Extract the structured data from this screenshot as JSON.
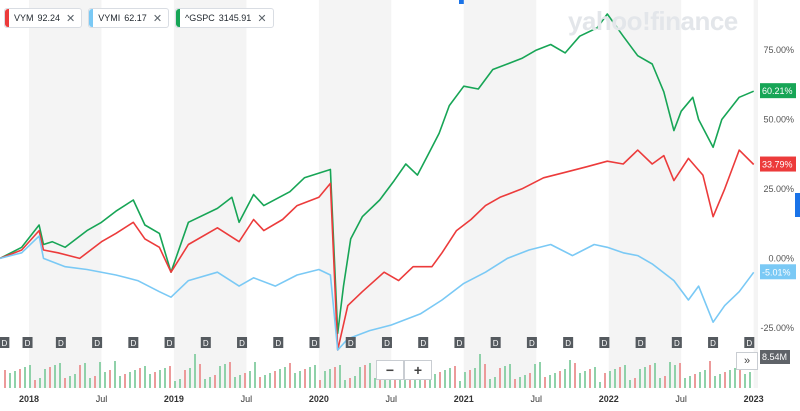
{
  "legend": [
    {
      "symbol": "VYM",
      "value": "92.24",
      "color": "#ec3b3b",
      "close": "✕"
    },
    {
      "symbol": "VYMI",
      "value": "62.17",
      "color": "#7ac9f5",
      "close": "✕"
    },
    {
      "symbol": "^GSPC",
      "value": "3145.91",
      "color": "#17a556",
      "close": "✕"
    }
  ],
  "brand": "yahoo!finance",
  "volume_badge": "8.54M",
  "zoom": {
    "minus": "−",
    "plus": "+"
  },
  "expand_icon": "»",
  "colors": {
    "vym": "#ec3b3b",
    "vymi": "#7ac9f5",
    "gspc": "#17a556",
    "shade": "#f4f4f4"
  },
  "chart_data": {
    "type": "line",
    "x_tick_labels": [
      "2018",
      "Jul",
      "2019",
      "Jul",
      "2020",
      "Jul",
      "2021",
      "Jul",
      "2022",
      "Jul",
      "2023"
    ],
    "x_tick_dates": [
      2018.0,
      2018.5,
      2019.0,
      2019.5,
      2020.0,
      2020.5,
      2021.0,
      2021.5,
      2022.0,
      2022.5,
      2023.0
    ],
    "x_range": [
      2017.8,
      2023.03
    ],
    "y_tick_labels": [
      "75.00%",
      "50.00%",
      "25.00%",
      "0.00%",
      "-25.00%"
    ],
    "y_tick_values": [
      75,
      50,
      25,
      0,
      -25
    ],
    "y_range": [
      -33,
      88
    ],
    "dividend_marker": "D",
    "dividend_dates": [
      2017.83,
      2017.99,
      2018.22,
      2018.47,
      2018.72,
      2018.97,
      2019.22,
      2019.47,
      2019.72,
      2019.97,
      2020.22,
      2020.47,
      2020.72,
      2020.97,
      2021.22,
      2021.47,
      2021.72,
      2021.97,
      2022.22,
      2022.47,
      2022.72,
      2022.97
    ],
    "series": [
      {
        "name": "^GSPC",
        "last_label": "60.21%",
        "color": "#17a556",
        "x": [
          2017.8,
          2017.95,
          2018.07,
          2018.1,
          2018.16,
          2018.25,
          2018.4,
          2018.5,
          2018.6,
          2018.72,
          2018.8,
          2018.9,
          2018.98,
          2019.1,
          2019.3,
          2019.4,
          2019.45,
          2019.55,
          2019.62,
          2019.8,
          2019.9,
          2020.08,
          2020.13,
          2020.17,
          2020.22,
          2020.3,
          2020.42,
          2020.52,
          2020.6,
          2020.68,
          2020.75,
          2020.83,
          2020.9,
          2021.0,
          2021.1,
          2021.2,
          2021.3,
          2021.4,
          2021.5,
          2021.6,
          2021.7,
          2021.8,
          2021.92,
          2021.99,
          2022.1,
          2022.2,
          2022.3,
          2022.38,
          2022.45,
          2022.5,
          2022.58,
          2022.62,
          2022.72,
          2022.78,
          2022.9,
          2023.0
        ],
        "y": [
          0,
          4,
          12,
          5,
          6,
          4,
          10,
          13,
          17,
          21,
          12,
          9,
          -5,
          13,
          18,
          22,
          13,
          23,
          19,
          24,
          29,
          32,
          -27,
          -10,
          7,
          15,
          21,
          28,
          34,
          30,
          37,
          45,
          55,
          62,
          61,
          68,
          70,
          72,
          75,
          77,
          74,
          80,
          83,
          88,
          80,
          73,
          70,
          60,
          46,
          53,
          58,
          50,
          40,
          50,
          58,
          60.21
        ]
      },
      {
        "name": "VYM",
        "last_label": "33.79%",
        "color": "#ec3b3b",
        "x": [
          2017.8,
          2017.95,
          2018.07,
          2018.1,
          2018.2,
          2018.35,
          2018.5,
          2018.6,
          2018.72,
          2018.8,
          2018.9,
          2018.98,
          2019.1,
          2019.3,
          2019.45,
          2019.55,
          2019.62,
          2019.75,
          2019.85,
          2020.0,
          2020.08,
          2020.13,
          2020.2,
          2020.3,
          2020.45,
          2020.55,
          2020.65,
          2020.78,
          2020.85,
          2020.95,
          2021.05,
          2021.15,
          2021.25,
          2021.4,
          2021.55,
          2021.7,
          2021.85,
          2021.99,
          2022.1,
          2022.2,
          2022.3,
          2022.38,
          2022.45,
          2022.55,
          2022.65,
          2022.72,
          2022.8,
          2022.9,
          2023.0
        ],
        "y": [
          0,
          3,
          10,
          3,
          2,
          0,
          6,
          9,
          13,
          7,
          4,
          -5,
          5,
          11,
          6,
          14,
          10,
          14,
          19,
          22,
          27,
          -33,
          -17,
          -12,
          -5,
          -8,
          -3,
          -3,
          2,
          10,
          14,
          19,
          22,
          25,
          29,
          31,
          33,
          35,
          34,
          39,
          34,
          37,
          28,
          36,
          30,
          15,
          25,
          39,
          33.79
        ]
      },
      {
        "name": "VYMI",
        "last_label": "-5.01%",
        "color": "#7ac9f5",
        "x": [
          2017.8,
          2017.95,
          2018.07,
          2018.1,
          2018.25,
          2018.4,
          2018.6,
          2018.75,
          2018.9,
          2018.98,
          2019.1,
          2019.3,
          2019.45,
          2019.55,
          2019.7,
          2019.85,
          2020.0,
          2020.08,
          2020.13,
          2020.2,
          2020.35,
          2020.5,
          2020.7,
          2020.85,
          2021.0,
          2021.15,
          2021.3,
          2021.45,
          2021.6,
          2021.75,
          2021.9,
          2021.99,
          2022.1,
          2022.2,
          2022.3,
          2022.45,
          2022.55,
          2022.62,
          2022.72,
          2022.8,
          2022.9,
          2023.0
        ],
        "y": [
          0,
          2,
          8,
          0,
          -3,
          -4,
          -6,
          -8,
          -12,
          -14,
          -8,
          -5,
          -10,
          -7,
          -10,
          -6,
          -4,
          -6,
          -33,
          -29,
          -26,
          -24,
          -20,
          -15,
          -9,
          -5,
          0,
          3,
          5,
          1,
          5,
          4,
          2,
          1,
          -2,
          -8,
          -15,
          -10,
          -23,
          -17,
          -12,
          -5.01
        ]
      }
    ]
  }
}
